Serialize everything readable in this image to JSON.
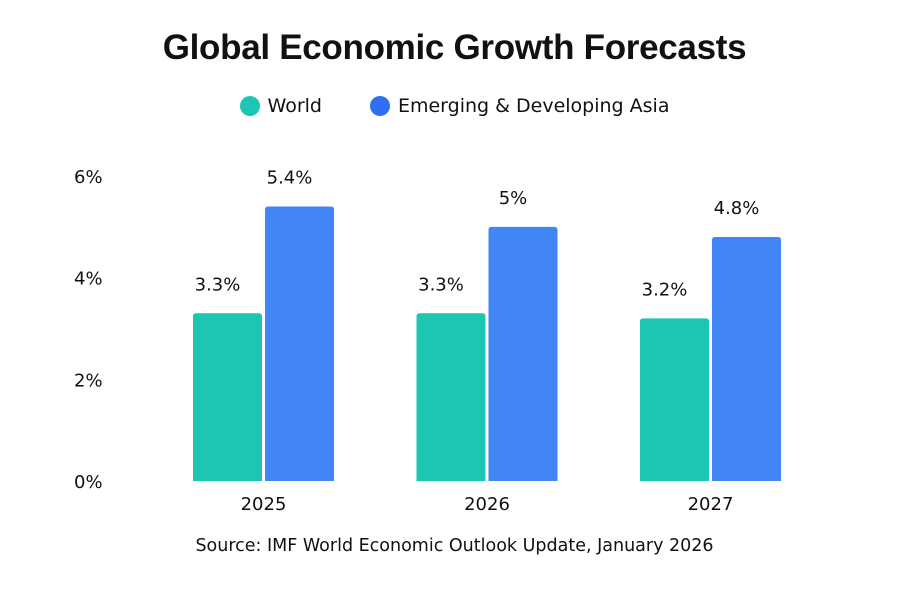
{
  "chart_data": {
    "type": "bar",
    "title": "Global Economic Growth Forecasts",
    "xlabel": "",
    "ylabel": "",
    "categories": [
      "2025",
      "2026",
      "2027"
    ],
    "series": [
      {
        "name": "World",
        "color": "#1DC5B3",
        "values": [
          3.3,
          3.3,
          3.2
        ],
        "labels": [
          "3.3%",
          "3.3%",
          "3.2%"
        ]
      },
      {
        "name": "Emerging & Developing Asia",
        "color": "#4285F4",
        "values": [
          5.4,
          5.0,
          4.8
        ],
        "labels": [
          "5.4%",
          "5%",
          "4.8%"
        ]
      }
    ],
    "ylim": [
      0,
      6
    ],
    "yticks": [
      0,
      2,
      4,
      6
    ],
    "ytick_labels": [
      "0%",
      "2%",
      "4%",
      "6%"
    ],
    "grid": false,
    "legend_placement": "top-center",
    "source": "Source: IMF World Economic Outlook Update, January 2026"
  },
  "legend_dot_colors": {
    "World": "#1DC5B3",
    "Emerging & Developing Asia": "#2F6FF2"
  }
}
